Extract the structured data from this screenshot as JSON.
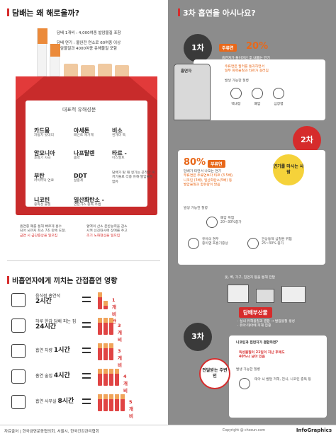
{
  "left_top": {
    "title": "담배는 왜 해로울까?",
    "fact1": "담배 1개비 : 4,000여종 발암물질 포함",
    "fact2_line1": "담배 연기 : 불완전 연소로 60여종 이상",
    "fact2_line2": "발암물질과 4000여종 유해물질 포함",
    "pack_heading": "대표적 유해성분",
    "items": [
      {
        "name": "카드뮴",
        "desc": "자동차 밧데리"
      },
      {
        "name": "아세톤",
        "desc": "페인트 제거제"
      },
      {
        "name": "비소",
        "desc": "흰개미 독"
      },
      {
        "name": "암모니아",
        "desc": "호흡기 자극"
      },
      {
        "name": "나프탈렌",
        "desc": "좀약"
      },
      {
        "name": "타르 -",
        "desc": "아스팔트"
      },
      {
        "name": "부탄",
        "desc": "라이터의 연료"
      },
      {
        "name": "DDT",
        "desc": "살충제"
      }
    ],
    "tar_note": "담배가 탈 때 생기는 끈적한 찌꺼기들로 각종 유해·발암물질 함유",
    "nicotine_name": "니코틴",
    "nicotine_desc": "중독성 물질",
    "co_name": "일산화탄소 -",
    "co_desc": "연탄가스 중독 주범",
    "nicotine_note_1": "흡연중 폐를 통해 빠르게 흡수",
    "nicotine_note_2": "되어 뇌까지 최소 7초 만에 도달.",
    "nicotine_note_3": "금연 시 금단증상을 일으킴",
    "co_note_1": "혈액의 산소 운반능력을 감소",
    "co_note_2": "시켜 신진대사에 장애를 주고",
    "co_note_3": "조기 노화현상을 일으킴"
  },
  "left_bottom": {
    "title": "비흡연자에게 끼치는 간접흡연 영향",
    "rows": [
      {
        "icon": "restaurant-icon",
        "label": "음식점 흡연석",
        "hours": "2시간",
        "count": "1개비 반"
      },
      {
        "icon": "home-icon",
        "label": "하루 한갑 담배 피는 집",
        "hours": "24시간",
        "count": "3개비"
      },
      {
        "icon": "car-icon",
        "label": "흡연 차량",
        "hours": "1시간",
        "count": "3개비"
      },
      {
        "icon": "building-icon",
        "label": "흡연 술집",
        "hours": "4시간",
        "count": "4개비"
      },
      {
        "icon": "office-icon",
        "label": "흡연 사무실",
        "hours": "8시간",
        "count": "5개비"
      }
    ]
  },
  "right": {
    "title": "3차 흡연을 아시나요?",
    "stage1": "1차",
    "stage1_person": "흡연자",
    "stage1_tag": "주류연",
    "stage1_pct": "20%",
    "stage1_desc_1": "흡연자가 들이마신 후 내뿜는 연기",
    "stage1_desc_2": "주류연은 필터를 통과하면서",
    "stage1_desc_3": "일부 화학물질과 타르가 걸러짐",
    "stage1_disease_title": "발생 가능한 질병",
    "stage1_diseases": [
      "백내장",
      "폐암",
      "심장병"
    ],
    "stage2": "2차",
    "stage2_pct": "80%",
    "stage2_tag": "부류연",
    "stage2_bubble": "연기를 마시는 사람",
    "stage2_desc_1": "담배가 타면서 나오는 연기",
    "stage2_desc_2": "부류연은 주류연보다 타르 (3.5배),",
    "stage2_desc_3": "니코틴 (3배), 일산화탄소(5배) 등",
    "stage2_desc_4": "발암물질과 함유량이 많음",
    "stage2_disease_title": "발생 가능한 질병",
    "stage2_d1": "폐암 위험",
    "stage2_d1_sub": "20~30%증가",
    "stage2_d2": "유아의 경우",
    "stage2_d2_sub": "중이염 호흡기증상",
    "stage2_d3": "관상동맥 심질환 위험",
    "stage2_d3_sub": "25~30% 증가",
    "stage3_caption": "옷, 벽, 가구, 집먼지 등을 통해 전달",
    "stage3_tag": "담배부산물",
    "stage3_b1": "실내 유해물질과 결합 → 발암물질 생성",
    "stage3_b2": "유아·태아에 피해 집중",
    "stage3": "3차",
    "stage3_bubble": "전달받는 주변인",
    "stage3_q": "니코틴과 집먼지가 결합하면?",
    "stage3_ans_1": "독성물질이 21일이 지난 후에도",
    "stage3_ans_2": "40%나 남아 있음",
    "stage3_disease_title": "발생 가능한 질병",
    "stage3_disease": "태아 뇌 발달 저해, 천식, 니코틴 중독 등"
  },
  "footer": {
    "source": "자료출처 | 한국금연운동협의회, 서울시, 한국건강관리협회",
    "copyright": "Copyright @ chosun.com",
    "brand": "InfoGraphics"
  }
}
